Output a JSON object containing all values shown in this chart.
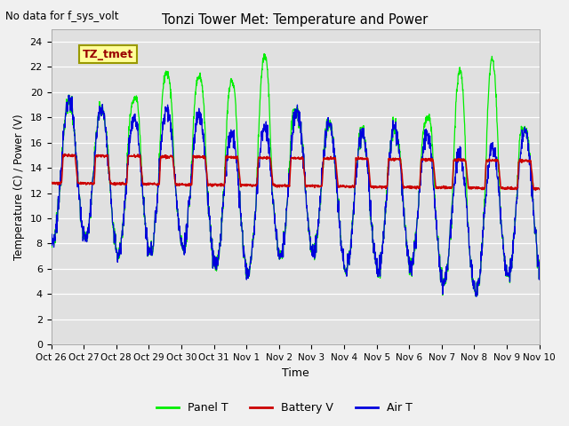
{
  "title": "Tonzi Tower Met: Temperature and Power",
  "no_data_text": "No data for f_sys_volt",
  "legend_label_text": "TZ_tmet",
  "xlabel": "Time",
  "ylabel": "Temperature (C) / Power (V)",
  "ylim": [
    0,
    25
  ],
  "yticks": [
    0,
    2,
    4,
    6,
    8,
    10,
    12,
    14,
    16,
    18,
    20,
    22,
    24
  ],
  "xtick_labels": [
    "Oct 26",
    "Oct 27",
    "Oct 28",
    "Oct 29",
    "Oct 30",
    "Oct 31",
    "Nov 1",
    "Nov 2",
    "Nov 3",
    "Nov 4",
    "Nov 5",
    "Nov 6",
    "Nov 7",
    "Nov 8",
    "Nov 9",
    "Nov 10"
  ],
  "bg_color": "#e0e0e0",
  "fig_color": "#f0f0f0",
  "panel_color": "#00ee00",
  "battery_color": "#cc0000",
  "air_color": "#0000dd",
  "legend_panel": "Panel T",
  "legend_battery": "Battery V",
  "legend_air": "Air T",
  "n_points": 2000
}
